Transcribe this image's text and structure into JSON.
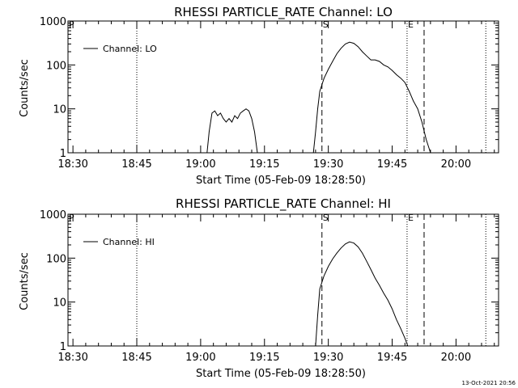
{
  "footer": {
    "timestamp": "13-Oct-2021 20:56"
  },
  "chart_data": [
    {
      "type": "line",
      "title": "RHESSI PARTICLE_RATE Channel: LO",
      "xlabel": "Start Time (05-Feb-09 18:28:50)",
      "ylabel": "Counts/sec",
      "yscale": "log",
      "xlim": [
        "18:28:50",
        "20:10:00"
      ],
      "ylim": [
        1,
        1000
      ],
      "x_ticks": [
        "18:30",
        "18:45",
        "19:00",
        "19:15",
        "19:30",
        "19:45",
        "20:00"
      ],
      "y_ticks": [
        "1",
        "10",
        "100",
        "1000"
      ],
      "grid": false,
      "legend": {
        "position": "top-left",
        "entries": [
          "Channel: LO"
        ]
      },
      "markers": [
        {
          "time": "18:45:00",
          "style": "dotted",
          "label": ""
        },
        {
          "time": "19:28:30",
          "style": "dashed",
          "label": "S"
        },
        {
          "time": "19:48:30",
          "style": "dotted",
          "label": "E"
        },
        {
          "time": "19:52:30",
          "style": "dashed",
          "label": ""
        },
        {
          "time": "20:07:00",
          "style": "dotted",
          "label": ""
        },
        {
          "time": "18:28:50",
          "style": "dotted",
          "label": "P"
        }
      ],
      "series": [
        {
          "name": "Channel: LO",
          "segments": [
            {
              "x": [
                "19:01:30",
                "19:02:00",
                "19:02:40",
                "19:03:20",
                "19:04:00",
                "19:04:40",
                "19:05:20",
                "19:06:00",
                "19:06:40",
                "19:07:20",
                "19:08:00",
                "19:08:40",
                "19:09:20",
                "19:10:00",
                "19:10:40",
                "19:11:20",
                "19:12:00",
                "19:12:40",
                "19:13:20"
              ],
              "y": [
                1,
                3,
                8,
                9,
                7,
                8,
                6,
                5,
                6,
                5,
                7,
                6,
                8,
                9,
                10,
                9,
                6,
                3,
                1
              ]
            },
            {
              "x": [
                "19:26:30",
                "19:27:00",
                "19:27:30",
                "19:28:00",
                "19:29:00",
                "19:30:00",
                "19:31:00",
                "19:32:00",
                "19:33:00",
                "19:34:00",
                "19:35:00",
                "19:36:00",
                "19:37:00",
                "19:38:00",
                "19:39:00",
                "19:40:00",
                "19:41:00",
                "19:42:00",
                "19:43:00",
                "19:44:00",
                "19:45:00",
                "19:46:00",
                "19:47:00",
                "19:48:00",
                "19:49:00",
                "19:50:00",
                "19:51:00",
                "19:52:00",
                "19:53:00",
                "19:54:00"
              ],
              "y": [
                1,
                3,
                10,
                25,
                50,
                80,
                120,
                180,
                240,
                300,
                330,
                310,
                260,
                200,
                160,
                130,
                130,
                120,
                100,
                90,
                75,
                60,
                50,
                40,
                25,
                15,
                10,
                5,
                2,
                1
              ]
            }
          ]
        }
      ]
    },
    {
      "type": "line",
      "title": "RHESSI PARTICLE_RATE Channel: HI",
      "xlabel": "Start Time (05-Feb-09 18:28:50)",
      "ylabel": "Counts/sec",
      "yscale": "log",
      "xlim": [
        "18:28:50",
        "20:10:00"
      ],
      "ylim": [
        1,
        1000
      ],
      "x_ticks": [
        "18:30",
        "18:45",
        "19:00",
        "19:15",
        "19:30",
        "19:45",
        "20:00"
      ],
      "y_ticks": [
        "1",
        "10",
        "100",
        "1000"
      ],
      "grid": false,
      "legend": {
        "position": "top-left",
        "entries": [
          "Channel: HI"
        ]
      },
      "markers": [
        {
          "time": "18:45:00",
          "style": "dotted",
          "label": ""
        },
        {
          "time": "19:28:30",
          "style": "dashed",
          "label": "S"
        },
        {
          "time": "19:48:30",
          "style": "dotted",
          "label": "E"
        },
        {
          "time": "19:52:30",
          "style": "dashed",
          "label": ""
        },
        {
          "time": "20:07:00",
          "style": "dotted",
          "label": ""
        },
        {
          "time": "18:28:50",
          "style": "dotted",
          "label": "P"
        }
      ],
      "series": [
        {
          "name": "Channel: HI",
          "segments": [
            {
              "x": [
                "19:27:00",
                "19:27:30",
                "19:28:00",
                "19:29:00",
                "19:30:00",
                "19:31:00",
                "19:32:00",
                "19:33:00",
                "19:34:00",
                "19:35:00",
                "19:36:00",
                "19:37:00",
                "19:38:00",
                "19:39:00",
                "19:40:00",
                "19:41:00",
                "19:42:00",
                "19:43:00",
                "19:44:00",
                "19:45:00",
                "19:46:00",
                "19:47:00",
                "19:48:00",
                "19:48:40"
              ],
              "y": [
                1,
                5,
                20,
                40,
                65,
                95,
                130,
                170,
                210,
                235,
                220,
                180,
                130,
                85,
                55,
                35,
                24,
                16,
                11,
                7,
                4,
                2.5,
                1.5,
                1
              ]
            }
          ]
        }
      ]
    }
  ]
}
